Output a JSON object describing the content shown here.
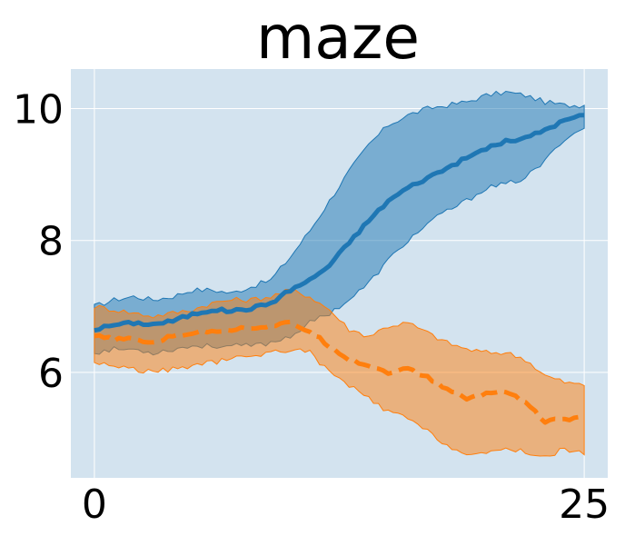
{
  "chart_data": {
    "type": "line",
    "title": "maze",
    "xlabel": "",
    "ylabel": "",
    "xlim": [
      -1.2,
      26.2
    ],
    "ylim": [
      4.4,
      10.6
    ],
    "xticks": [
      0,
      25
    ],
    "yticks": [
      6,
      8,
      10
    ],
    "grid": true,
    "legend": "none",
    "background_color": "#d3e3ef",
    "series": [
      {
        "color": "#1f77b4",
        "style": "solid",
        "x": [
          0,
          1,
          2,
          3,
          4,
          5,
          6,
          7,
          8,
          9,
          10,
          11,
          12,
          13,
          14,
          15,
          16,
          17,
          18,
          19,
          20,
          21,
          22,
          23,
          24,
          25
        ],
        "values": [
          6.65,
          6.72,
          6.75,
          6.73,
          6.78,
          6.88,
          6.95,
          6.93,
          6.97,
          7.05,
          7.25,
          7.4,
          7.62,
          7.97,
          8.3,
          8.6,
          8.8,
          8.95,
          9.1,
          9.25,
          9.4,
          9.5,
          9.55,
          9.68,
          9.82,
          9.9
        ],
        "band_low": [
          6.3,
          6.35,
          6.35,
          6.3,
          6.35,
          6.4,
          6.4,
          6.4,
          6.4,
          6.45,
          6.55,
          6.75,
          6.9,
          7.1,
          7.35,
          7.7,
          8.0,
          8.25,
          8.45,
          8.6,
          8.8,
          8.85,
          8.95,
          9.2,
          9.55,
          9.7
        ],
        "band_high": [
          7.0,
          7.1,
          7.15,
          7.1,
          7.15,
          7.25,
          7.25,
          7.2,
          7.3,
          7.4,
          7.75,
          8.15,
          8.6,
          9.05,
          9.45,
          9.75,
          9.9,
          10.0,
          10.05,
          10.1,
          10.2,
          10.25,
          10.2,
          10.1,
          10.05,
          10.05
        ]
      },
      {
        "color": "#ff7f0e",
        "style": "dashed",
        "x": [
          0,
          1,
          2,
          3,
          4,
          5,
          6,
          7,
          8,
          9,
          10,
          11,
          12,
          13,
          14,
          15,
          16,
          17,
          18,
          19,
          20,
          21,
          22,
          23,
          24,
          25
        ],
        "values": [
          6.55,
          6.5,
          6.5,
          6.45,
          6.55,
          6.6,
          6.63,
          6.65,
          6.68,
          6.7,
          6.75,
          6.62,
          6.4,
          6.2,
          6.1,
          6.0,
          6.05,
          5.92,
          5.75,
          5.6,
          5.68,
          5.72,
          5.55,
          5.25,
          5.3,
          5.3
        ],
        "band_low": [
          6.15,
          6.1,
          6.05,
          6.0,
          6.05,
          6.1,
          6.15,
          6.2,
          6.25,
          6.3,
          6.35,
          6.3,
          6.0,
          5.8,
          5.6,
          5.4,
          5.3,
          5.1,
          4.9,
          4.75,
          4.75,
          4.85,
          4.8,
          4.7,
          4.85,
          4.75
        ],
        "band_high": [
          7.0,
          6.95,
          6.9,
          6.85,
          6.9,
          6.95,
          7.05,
          7.1,
          7.1,
          7.15,
          7.25,
          7.15,
          6.95,
          6.65,
          6.55,
          6.7,
          6.75,
          6.6,
          6.45,
          6.35,
          6.3,
          6.3,
          6.2,
          5.95,
          5.85,
          5.8
        ]
      }
    ]
  }
}
